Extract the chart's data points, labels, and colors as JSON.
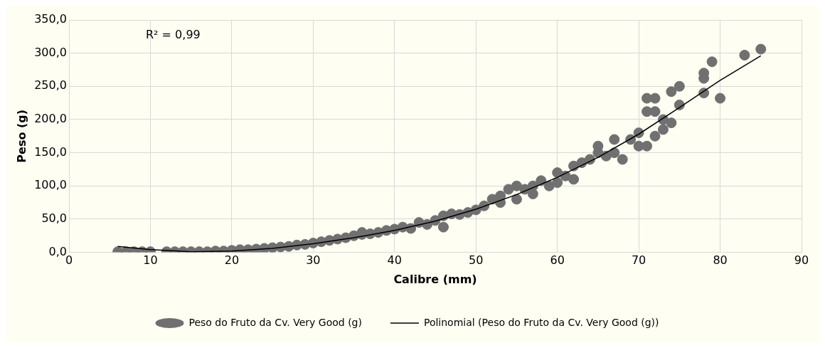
{
  "chart_data": {
    "type": "scatter",
    "xlabel": "Calibre (mm)",
    "ylabel": "Peso (g)",
    "annotations": [
      "R² = 0,99"
    ],
    "xlim": [
      0,
      90
    ],
    "xticks": [
      0,
      10,
      20,
      30,
      40,
      50,
      60,
      70,
      80,
      90
    ],
    "ylim": [
      0,
      350
    ],
    "yticks": [
      {
        "value": 0,
        "label": "0,0"
      },
      {
        "value": 50,
        "label": "50,0"
      },
      {
        "value": 100,
        "label": "100,0"
      },
      {
        "value": 150,
        "label": "150,0"
      },
      {
        "value": 200,
        "label": "200,0"
      },
      {
        "value": 250,
        "label": "250,0"
      },
      {
        "value": 300,
        "label": "300,0"
      },
      {
        "value": 350,
        "label": "350,0"
      }
    ],
    "grid": true,
    "legend": "bottom",
    "marker": "circle",
    "series": [
      {
        "name": "Peso do Fruto da Cv. Very Good (g)",
        "color": "#707070",
        "type": "scatter",
        "x": [
          6,
          7,
          8,
          9,
          10,
          12,
          13,
          14,
          15,
          16,
          17,
          18,
          19,
          20,
          21,
          22,
          23,
          24,
          25,
          26,
          27,
          28,
          29,
          30,
          31,
          32,
          33,
          34,
          35,
          36,
          36,
          37,
          38,
          39,
          40,
          41,
          42,
          43,
          44,
          45,
          46,
          46,
          47,
          48,
          49,
          50,
          51,
          52,
          53,
          53,
          54,
          55,
          55,
          56,
          57,
          57,
          58,
          59,
          60,
          60,
          61,
          62,
          62,
          63,
          64,
          65,
          65,
          66,
          67,
          67,
          68,
          69,
          70,
          70,
          71,
          71,
          71,
          72,
          72,
          72,
          73,
          73,
          74,
          74,
          75,
          75,
          78,
          78,
          78,
          79,
          80,
          83,
          85
        ],
        "values": [
          1,
          1,
          1,
          1,
          1,
          1,
          1,
          1,
          1,
          1,
          1,
          2,
          2,
          3,
          4,
          4,
          5,
          6,
          7,
          8,
          9,
          11,
          12,
          14,
          16,
          18,
          20,
          22,
          25,
          30,
          27,
          28,
          30,
          33,
          35,
          38,
          36,
          45,
          42,
          48,
          38,
          55,
          58,
          57,
          60,
          64,
          70,
          80,
          85,
          75,
          95,
          100,
          80,
          95,
          100,
          88,
          108,
          100,
          105,
          120,
          115,
          130,
          110,
          135,
          140,
          150,
          160,
          145,
          170,
          150,
          140,
          170,
          180,
          160,
          212,
          232,
          160,
          232,
          212,
          175,
          200,
          185,
          242,
          195,
          250,
          222,
          270,
          262,
          240,
          287,
          232,
          297,
          306
        ]
      },
      {
        "name": "Polinomial (Peso do Fruto da Cv. Very Good (g))",
        "color": "#000000",
        "type": "line",
        "marker": "none",
        "line_style": "solid",
        "x": [
          6,
          10,
          15,
          20,
          25,
          30,
          35,
          40,
          45,
          50,
          55,
          60,
          65,
          70,
          75,
          80,
          85
        ],
        "values": [
          9,
          4,
          1,
          2,
          6,
          13,
          22,
          33,
          47,
          65,
          87,
          113,
          143,
          178,
          218,
          259,
          296
        ]
      }
    ]
  }
}
